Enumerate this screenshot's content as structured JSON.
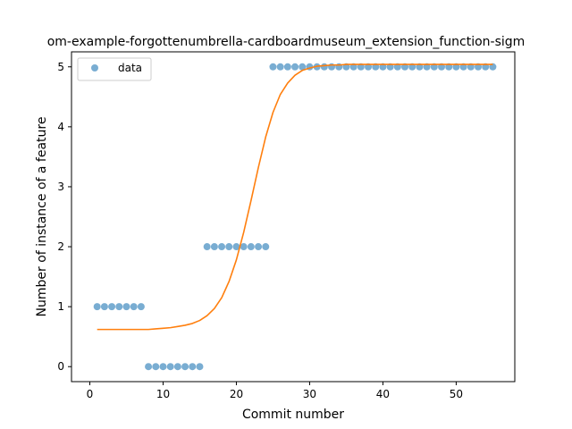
{
  "chart_data": {
    "type": "scatter",
    "title": "om-example-forgottenumbrella-cardboardmuseum_extension_function-sigm",
    "xlabel": "Commit number",
    "ylabel": "Number of instance of a feature",
    "xlim": [
      -2.5,
      58
    ],
    "ylim": [
      -0.25,
      5.25
    ],
    "xticks": [
      0,
      10,
      20,
      30,
      40,
      50
    ],
    "yticks": [
      0,
      1,
      2,
      3,
      4,
      5
    ],
    "grid": false,
    "legend": {
      "placement": "top-left",
      "entries": [
        "data"
      ]
    },
    "series": [
      {
        "name": "data",
        "kind": "points",
        "color": "#1f77b4",
        "x": [
          1,
          2,
          3,
          4,
          5,
          6,
          7,
          8,
          9,
          10,
          11,
          12,
          13,
          14,
          15,
          16,
          17,
          18,
          19,
          20,
          21,
          22,
          23,
          24,
          25,
          26,
          27,
          28,
          29,
          30,
          31,
          32,
          33,
          34,
          35,
          36,
          37,
          38,
          39,
          40,
          41,
          42,
          43,
          44,
          45,
          46,
          47,
          48,
          49,
          50,
          51,
          52,
          53,
          54,
          55
        ],
        "y": [
          1,
          1,
          1,
          1,
          1,
          1,
          1,
          0,
          0,
          0,
          0,
          0,
          0,
          0,
          0,
          2,
          2,
          2,
          2,
          2,
          2,
          2,
          2,
          2,
          5,
          5,
          5,
          5,
          5,
          5,
          5,
          5,
          5,
          5,
          5,
          5,
          5,
          5,
          5,
          5,
          5,
          5,
          5,
          5,
          5,
          5,
          5,
          5,
          5,
          5,
          5,
          5,
          5,
          5,
          5
        ]
      },
      {
        "kind": "line",
        "color": "#ff7f0e",
        "x": [
          1,
          2,
          3,
          4,
          5,
          6,
          7,
          8,
          9,
          10,
          11,
          12,
          13,
          14,
          15,
          16,
          17,
          18,
          19,
          20,
          21,
          22,
          23,
          24,
          25,
          26,
          27,
          28,
          29,
          30,
          31,
          32,
          33,
          34,
          35,
          36,
          37,
          38,
          39,
          40,
          41,
          42,
          43,
          44,
          45,
          46,
          47,
          48,
          49,
          50,
          51,
          52,
          53,
          54,
          55
        ],
        "y": [
          0.62,
          0.62,
          0.62,
          0.62,
          0.62,
          0.62,
          0.62,
          0.62,
          0.63,
          0.64,
          0.65,
          0.67,
          0.69,
          0.72,
          0.77,
          0.85,
          0.97,
          1.15,
          1.42,
          1.78,
          2.24,
          2.77,
          3.32,
          3.83,
          4.24,
          4.54,
          4.73,
          4.86,
          4.94,
          4.98,
          5.01,
          5.02,
          5.03,
          5.03,
          5.04,
          5.04,
          5.04,
          5.04,
          5.04,
          5.04,
          5.04,
          5.04,
          5.04,
          5.04,
          5.04,
          5.04,
          5.04,
          5.04,
          5.04,
          5.04,
          5.04,
          5.04,
          5.04,
          5.04,
          5.04
        ]
      }
    ]
  }
}
